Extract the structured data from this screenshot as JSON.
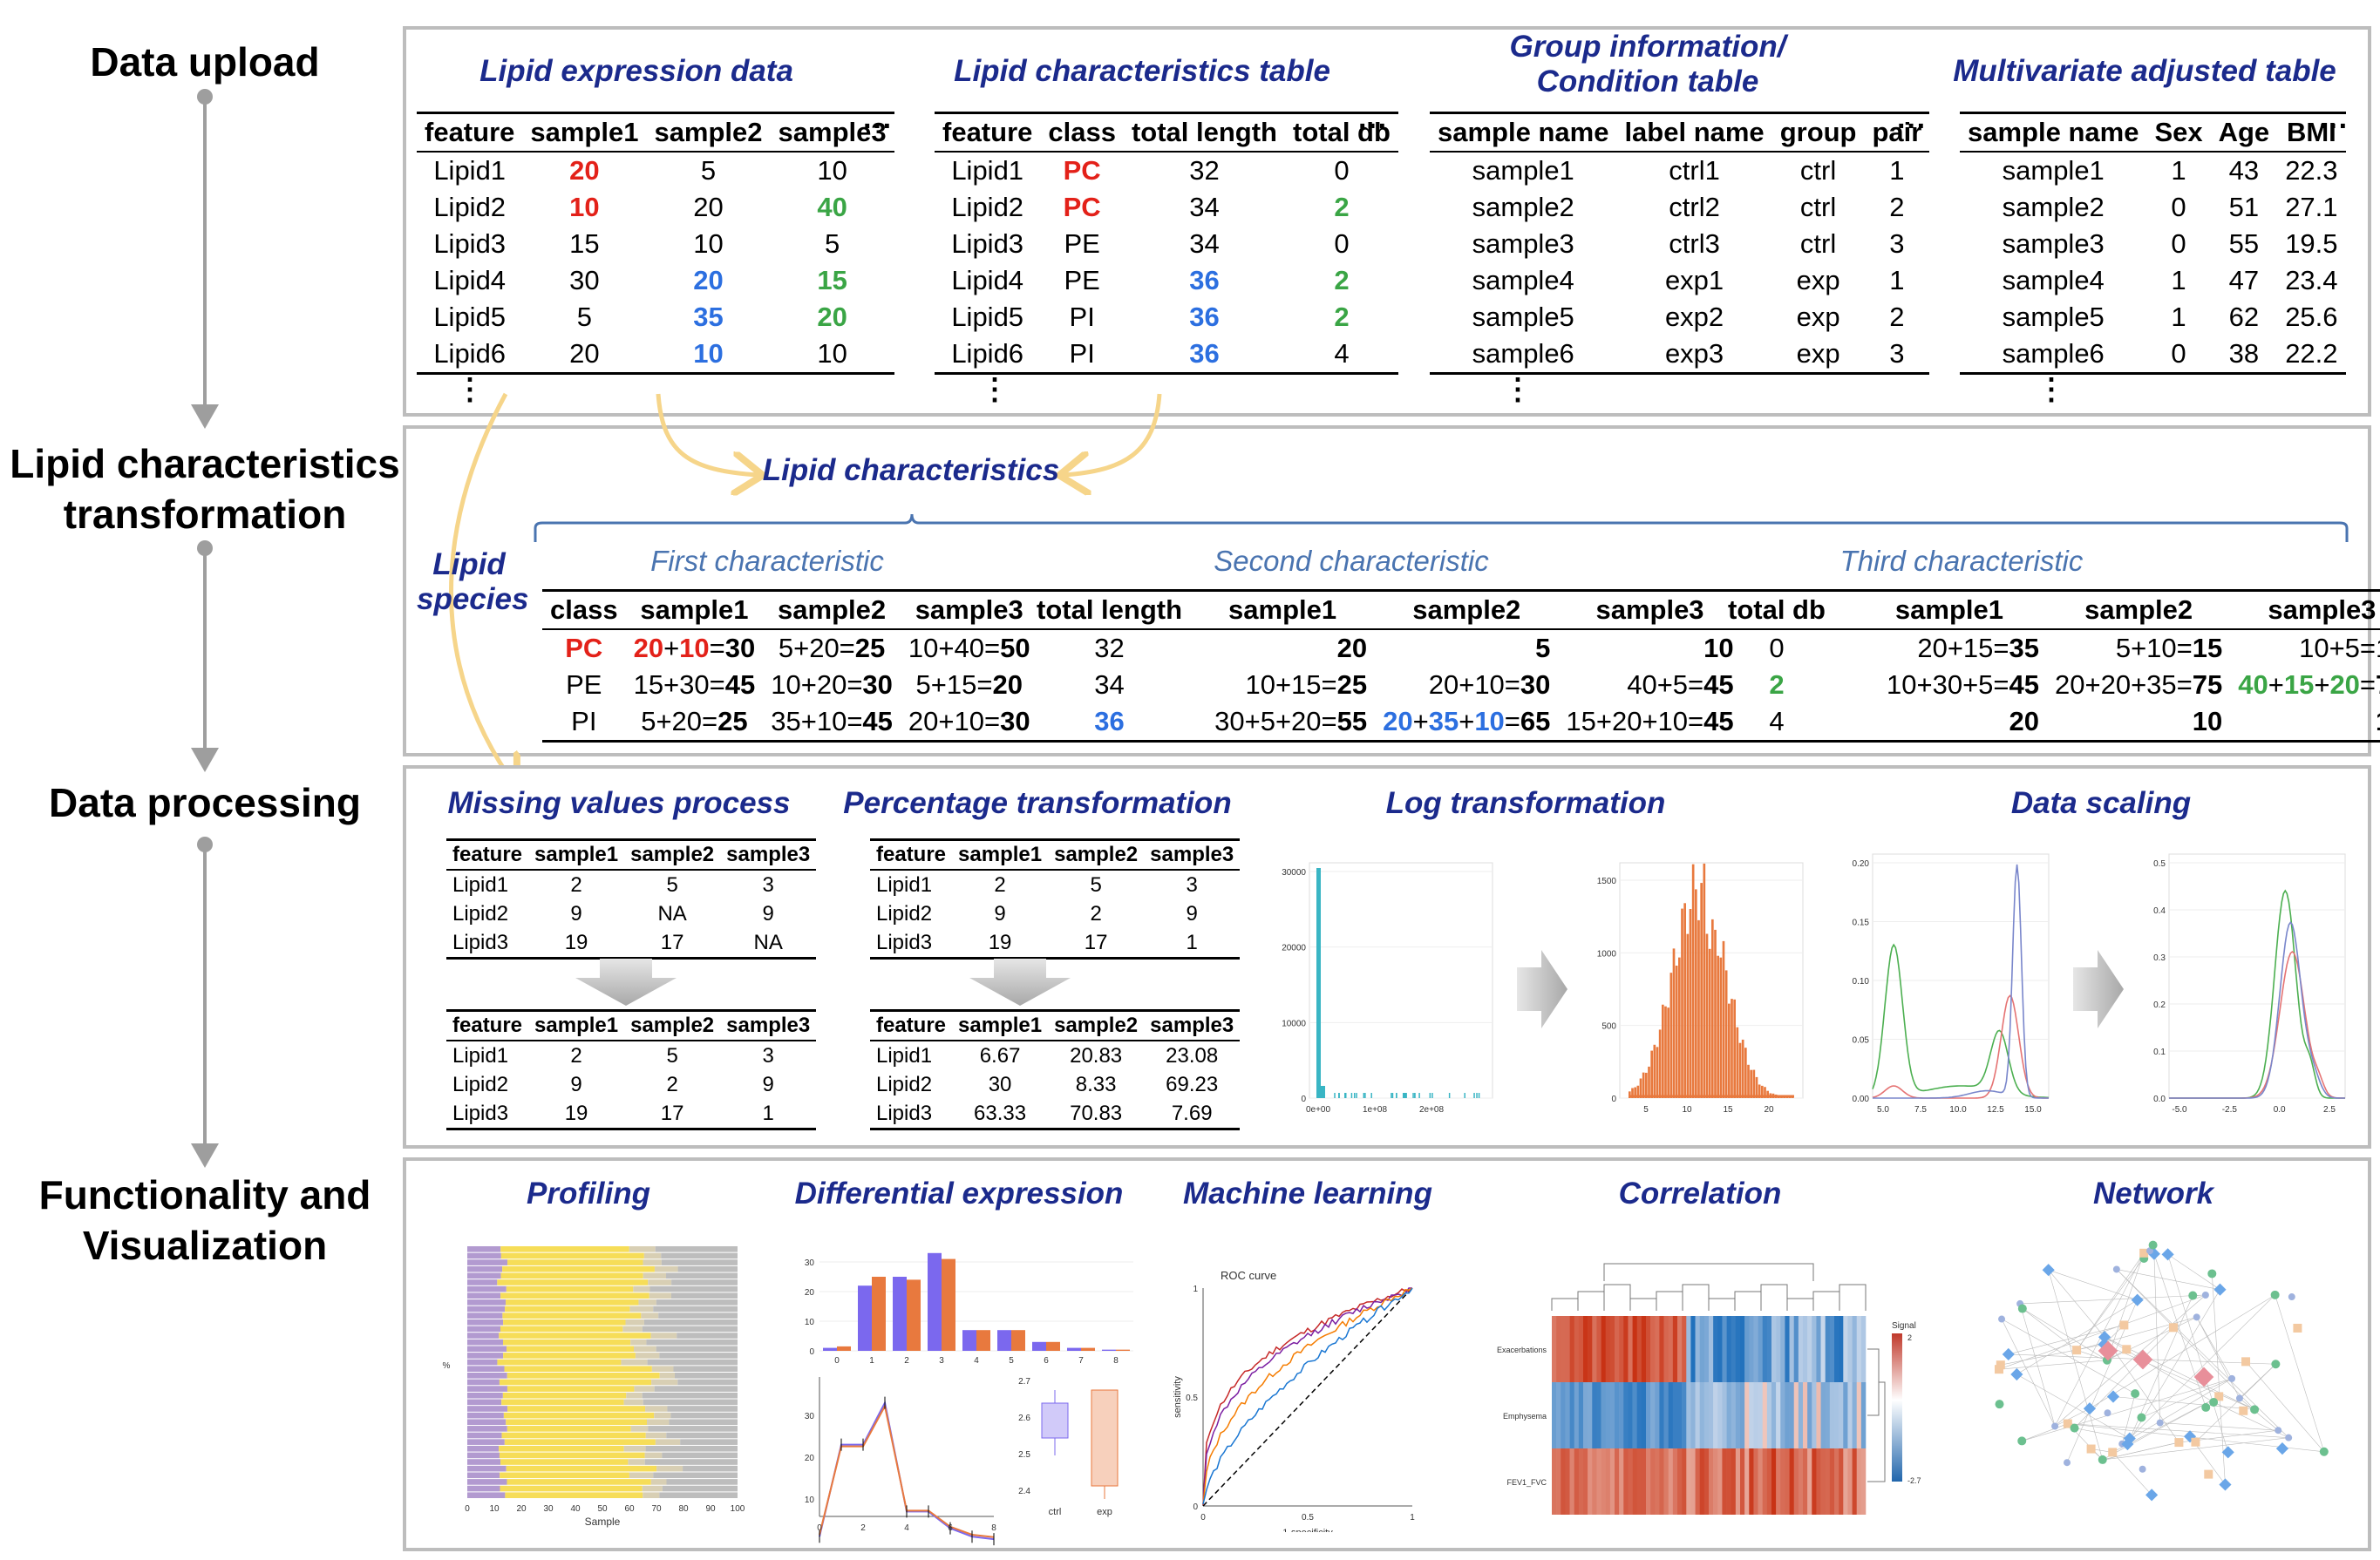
{
  "sections": {
    "upload": "Data upload",
    "transform1": "Lipid characteristics",
    "transform2": "transformation",
    "processing": "Data processing",
    "func1": "Functionality and",
    "func2": "Visualization"
  },
  "upload": {
    "expr_title": "Lipid expression data",
    "char_title": "Lipid characteristics table",
    "group_title1": "Group information/",
    "group_title2": "Condition table",
    "multi_title": "Multivariate adjusted table",
    "expr_headers": [
      "feature",
      "sample1",
      "sample2",
      "sample3"
    ],
    "expr_rows": [
      [
        "Lipid1",
        "20",
        "5",
        "10"
      ],
      [
        "Lipid2",
        "10",
        "20",
        "40"
      ],
      [
        "Lipid3",
        "15",
        "10",
        "5"
      ],
      [
        "Lipid4",
        "30",
        "20",
        "15"
      ],
      [
        "Lipid5",
        "5",
        "35",
        "20"
      ],
      [
        "Lipid6",
        "20",
        "10",
        "10"
      ]
    ],
    "char_headers": [
      "feature",
      "class",
      "total length",
      "total db"
    ],
    "char_rows": [
      [
        "Lipid1",
        "PC",
        "32",
        "0"
      ],
      [
        "Lipid2",
        "PC",
        "34",
        "2"
      ],
      [
        "Lipid3",
        "PE",
        "34",
        "0"
      ],
      [
        "Lipid4",
        "PE",
        "36",
        "2"
      ],
      [
        "Lipid5",
        "PI",
        "36",
        "2"
      ],
      [
        "Lipid6",
        "PI",
        "36",
        "4"
      ]
    ],
    "group_headers": [
      "sample name",
      "label name",
      "group",
      "pair"
    ],
    "group_rows": [
      [
        "sample1",
        "ctrl1",
        "ctrl",
        "1"
      ],
      [
        "sample2",
        "ctrl2",
        "ctrl",
        "2"
      ],
      [
        "sample3",
        "ctrl3",
        "ctrl",
        "3"
      ],
      [
        "sample4",
        "exp1",
        "exp",
        "1"
      ],
      [
        "sample5",
        "exp2",
        "exp",
        "2"
      ],
      [
        "sample6",
        "exp3",
        "exp",
        "3"
      ]
    ],
    "multi_headers": [
      "sample name",
      "Sex",
      "Age",
      "BMI"
    ],
    "multi_rows": [
      [
        "sample1",
        "1",
        "43",
        "22.3"
      ],
      [
        "sample2",
        "0",
        "51",
        "27.1"
      ],
      [
        "sample3",
        "0",
        "55",
        "19.5"
      ],
      [
        "sample4",
        "1",
        "47",
        "23.4"
      ],
      [
        "sample5",
        "1",
        "62",
        "25.6"
      ],
      [
        "sample6",
        "0",
        "38",
        "22.2"
      ]
    ],
    "hdots": "···",
    "vdots": "⋮"
  },
  "transform": {
    "lipid_char": "Lipid characteristics",
    "lipid_species1": "Lipid",
    "lipid_species2": "species",
    "first": "First characteristic",
    "second": "Second characteristic",
    "third": "Third characteristic",
    "first_headers": [
      "class",
      "sample1",
      "sample2",
      "sample3"
    ],
    "second_headers": [
      "total length",
      "sample1",
      "sample2",
      "sample3"
    ],
    "third_headers": [
      "total db",
      "sample1",
      "sample2",
      "sample3"
    ]
  },
  "processing": {
    "missing_title": "Missing values process",
    "percent_title": "Percentage transformation",
    "log_title": "Log transformation",
    "scaling_title": "Data scaling",
    "headers": [
      "feature",
      "sample1",
      "sample2",
      "sample3"
    ],
    "missing_before": [
      [
        "Lipid1",
        "2",
        "5",
        "3"
      ],
      [
        "Lipid2",
        "9",
        "NA",
        "9"
      ],
      [
        "Lipid3",
        "19",
        "17",
        "NA"
      ]
    ],
    "missing_after": [
      [
        "Lipid1",
        "2",
        "5",
        "3"
      ],
      [
        "Lipid2",
        "9",
        "2",
        "9"
      ],
      [
        "Lipid3",
        "19",
        "17",
        "1"
      ]
    ],
    "percent_before": [
      [
        "Lipid1",
        "2",
        "5",
        "3"
      ],
      [
        "Lipid2",
        "9",
        "2",
        "9"
      ],
      [
        "Lipid3",
        "19",
        "17",
        "1"
      ]
    ],
    "percent_after": [
      [
        "Lipid1",
        "6.67",
        "20.83",
        "23.08"
      ],
      [
        "Lipid2",
        "30",
        "8.33",
        "69.23"
      ],
      [
        "Lipid3",
        "63.33",
        "70.83",
        "7.69"
      ]
    ],
    "log_raw_yticks": [
      "0",
      "10000",
      "20000",
      "30000"
    ],
    "log_raw_xticks": [
      "0e+00",
      "1e+08",
      "2e+08"
    ],
    "log_tr_yticks": [
      "0",
      "500",
      "1000",
      "1500"
    ],
    "log_tr_xticks": [
      "5",
      "10",
      "15",
      "20"
    ],
    "scale_raw_yticks": [
      "0.00",
      "0.05",
      "0.10",
      "0.15",
      "0.20"
    ],
    "scale_raw_xticks": [
      "5.0",
      "7.5",
      "10.0",
      "12.5",
      "15.0"
    ],
    "scale_tr_yticks": [
      "0.0",
      "0.1",
      "0.2",
      "0.3",
      "0.4",
      "0.5"
    ],
    "scale_tr_xticks": [
      "-5.0",
      "-2.5",
      "0.0",
      "2.5"
    ]
  },
  "functionality": {
    "profiling_title": "Profiling",
    "diff_title": "Differential expression",
    "ml_title": "Machine learning",
    "corr_title": "Correlation",
    "network_title": "Network",
    "profiling_xlabel": "Sample",
    "profiling_ylabel": "%",
    "profiling_xticks": [
      "0",
      "10",
      "20",
      "30",
      "40",
      "50",
      "60",
      "70",
      "80",
      "90",
      "100"
    ],
    "diff_bar_yticks": [
      "0",
      "10",
      "20",
      "30"
    ],
    "diff_bar_xticks": [
      "0",
      "1",
      "2",
      "3",
      "4",
      "5",
      "6",
      "7",
      "8"
    ],
    "diff_line_yticks": [
      "10",
      "20",
      "30"
    ],
    "diff_line_xticks": [
      "0",
      "2",
      "4",
      "6",
      "8"
    ],
    "diff_box_yticks": [
      "2.4",
      "2.5",
      "2.6",
      "2.7"
    ],
    "diff_box_xticks": [
      "ctrl",
      "exp"
    ],
    "roc_title": "ROC curve",
    "roc_xlabel": "1-specificity",
    "roc_ylabel": "sensitivity",
    "roc_xticks": [
      "0",
      "0.5",
      "1"
    ],
    "roc_yticks": [
      "0",
      "0.5",
      "1"
    ],
    "corr_rows": [
      "Exacerbations",
      "Emphysema",
      "FEV1_FVC"
    ],
    "corr_legend_title": "Signal",
    "corr_legend_max": "2",
    "corr_legend_min": "-2.7"
  },
  "colors": {
    "title": "#1b2a8c",
    "subtitle": "#4a74b0",
    "red": "#e32119",
    "blue": "#2c6fe0",
    "green": "#3aa545",
    "yellow_arrow": "#f6d58a",
    "orange": "#e8793e",
    "purple": "#7b68ee",
    "teal": "#39b5c4"
  }
}
